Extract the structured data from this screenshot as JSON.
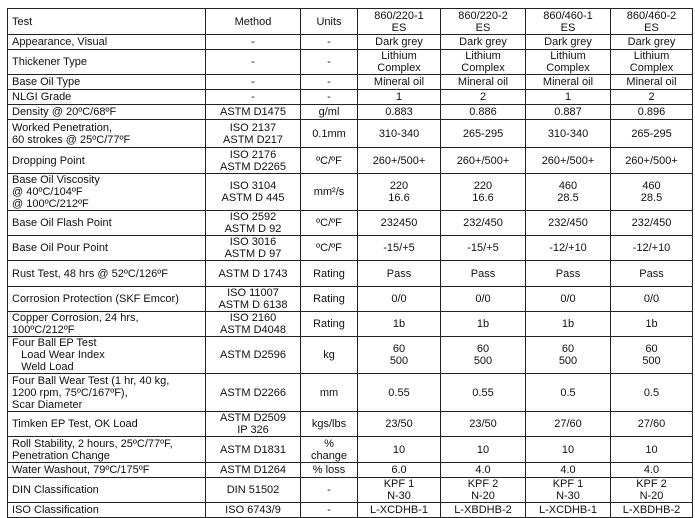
{
  "header": [
    "Test",
    "Method",
    "Units",
    "860/220-1\nES",
    "860/220-2\nES",
    "860/460-1\nES",
    "860/460-2\nES"
  ],
  "rows": [
    {
      "test": "Appearance, Visual",
      "method": "-",
      "units": "-",
      "values": [
        "Dark grey",
        "Dark grey",
        "Dark grey",
        "Dark grey"
      ]
    },
    {
      "test": "Thickener Type",
      "method": "-",
      "units": "-",
      "values": [
        "Lithium\nComplex",
        "Lithium\nComplex",
        "Lithium\nComplex",
        "Lithium\nComplex"
      ]
    },
    {
      "test": "Base Oil Type",
      "method": "-",
      "units": "-",
      "values": [
        "Mineral oil",
        "Mineral oil",
        "Mineral oil",
        "Mineral oil"
      ]
    },
    {
      "test": "NLGI Grade",
      "method": "-",
      "units": "-",
      "values": [
        "1",
        "2",
        "1",
        "2"
      ]
    },
    {
      "test": "Density @ 20ºC/68ºF",
      "method": "ASTM D1475",
      "units": "g/ml",
      "values": [
        "0.883",
        "0.886",
        "0.887",
        "0.896"
      ]
    },
    {
      "test": "Worked Penetration,\n60 strokes @ 25ºC/77ºF",
      "method": "ISO 2137\nASTM D217",
      "units": "0.1mm",
      "values": [
        "310-340",
        "265-295",
        "310-340",
        "265-295"
      ]
    },
    {
      "test": "Dropping Point",
      "method": "ISO 2176\nASTM D2265",
      "units": "ºC/ºF",
      "values": [
        "260+/500+",
        "260+/500+",
        "260+/500+",
        "260+/500+"
      ]
    },
    {
      "test": "Base Oil Viscosity\n@ 40ºC/104ºF\n@ 100ºC/212ºF",
      "method": "ISO 3104\nASTM D 445",
      "units": "mm²/s",
      "values": [
        "220\n16.6",
        "220\n16.6",
        "460\n28.5",
        "460\n28.5"
      ]
    },
    {
      "test": "Base Oil Flash Point",
      "method": "ISO 2592\nASTM D 92",
      "units": "ºC/ºF",
      "values": [
        "232450",
        "232/450",
        "232/450",
        "232/450"
      ]
    },
    {
      "test": "Base Oil Pour Point",
      "method": "ISO 3016\nASTM D 97",
      "units": "ºC/ºF",
      "values": [
        "-15/+5",
        "-15/+5",
        "-12/+10",
        "-12/+10"
      ]
    },
    {
      "test": "Rust Test, 48 hrs @ 52ºC/126ºF",
      "method": "ASTM D 1743",
      "units": "Rating",
      "values": [
        "Pass",
        "Pass",
        "Pass",
        "Pass"
      ]
    },
    {
      "test": "Corrosion Protection (SKF Emcor)",
      "method": "ISO 11007\nASTM D 6138",
      "units": "Rating",
      "values": [
        "0/0",
        "0/0",
        "0/0",
        "0/0"
      ]
    },
    {
      "test": "Copper Corrosion, 24 hrs,\n100ºC/212ºF",
      "method": "ISO 2160\nASTM D4048",
      "units": "Rating",
      "values": [
        "1b",
        "1b",
        "1b",
        "1b"
      ]
    },
    {
      "test": "Four Ball EP Test\n   Load Wear Index\n   Weld Load",
      "method": "ASTM D2596",
      "units": "kg",
      "values": [
        "60\n500",
        "60\n500",
        "60\n500",
        "60\n500"
      ]
    },
    {
      "test": "Four Ball Wear Test (1 hr, 40 kg,\n1200 rpm, 75ºC/167ºF),\nScar Diameter",
      "method": "ASTM D2266",
      "units": "mm",
      "values": [
        "0.55",
        "0.55",
        "0.5",
        "0.5"
      ]
    },
    {
      "test": "Timken EP Test, OK Load",
      "method": "ASTM D2509\nIP 326",
      "units": "kgs/lbs",
      "values": [
        "23/50",
        "23/50",
        "27/60",
        "27/60"
      ]
    },
    {
      "test": "Roll Stability, 2 hours, 25ºC/77ºF,\nPenetration Change",
      "method": "ASTM D1831",
      "units": "%\nchange",
      "values": [
        "10",
        "10",
        "10",
        "10"
      ]
    },
    {
      "test": "Water Washout, 79ºC/175ºF",
      "method": "ASTM D1264",
      "units": "% loss",
      "values": [
        "6.0",
        "4.0",
        "4.0",
        "4.0"
      ]
    },
    {
      "test": "DIN Classification",
      "method": "DIN 51502",
      "units": "-",
      "values": [
        "KPF 1\nN-30",
        "KPF 2\nN-20",
        "KPF 1\nN-30",
        "KPF 2\nN-20"
      ]
    },
    {
      "test": "ISO Classification",
      "method": "ISO 6743/9",
      "units": "-",
      "values": [
        "L-XCDHB-1",
        "L-XBDHB-2",
        "L-XCDHB-1",
        "L-XBDHB-2"
      ]
    }
  ]
}
